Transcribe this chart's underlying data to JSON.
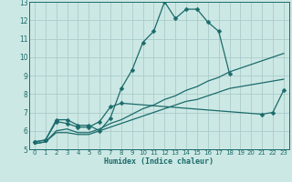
{
  "xlabel": "Humidex (Indice chaleur)",
  "xlim": [
    -0.5,
    23.5
  ],
  "ylim": [
    5,
    13
  ],
  "yticks": [
    5,
    6,
    7,
    8,
    9,
    10,
    11,
    12,
    13
  ],
  "xticks": [
    0,
    1,
    2,
    3,
    4,
    5,
    6,
    7,
    8,
    9,
    10,
    11,
    12,
    13,
    14,
    15,
    16,
    17,
    18,
    19,
    20,
    21,
    22,
    23
  ],
  "bg_color": "#cce8e4",
  "grid_color": "#aacccc",
  "line_color": "#1a6b6b",
  "lines": [
    {
      "x": [
        0,
        1,
        2,
        3,
        4,
        5,
        6,
        7,
        8,
        9,
        10,
        11,
        12,
        13,
        14,
        15,
        16,
        17,
        18
      ],
      "y": [
        5.4,
        5.5,
        6.6,
        6.6,
        6.3,
        6.3,
        6.0,
        6.7,
        8.3,
        9.3,
        10.8,
        11.4,
        13.0,
        12.1,
        12.6,
        12.6,
        11.9,
        11.4,
        9.1
      ],
      "marker": "D",
      "markersize": 2.5,
      "linewidth": 0.9
    },
    {
      "x": [
        0,
        1,
        2,
        3,
        4,
        5,
        6,
        7,
        8,
        21,
        22,
        23
      ],
      "y": [
        5.4,
        5.5,
        6.5,
        6.4,
        6.2,
        6.2,
        6.5,
        7.3,
        7.5,
        6.9,
        7.0,
        8.2
      ],
      "marker": "D",
      "markersize": 2.5,
      "linewidth": 0.9
    },
    {
      "x": [
        0,
        1,
        2,
        3,
        4,
        5,
        6,
        7,
        8,
        9,
        10,
        11,
        12,
        13,
        14,
        15,
        16,
        17,
        18,
        19,
        20,
        21,
        22,
        23
      ],
      "y": [
        5.3,
        5.4,
        6.0,
        6.1,
        5.9,
        5.9,
        6.1,
        6.4,
        6.6,
        6.9,
        7.2,
        7.4,
        7.7,
        7.9,
        8.2,
        8.4,
        8.7,
        8.9,
        9.2,
        9.4,
        9.6,
        9.8,
        10.0,
        10.2
      ],
      "marker": null,
      "markersize": 0,
      "linewidth": 0.9
    },
    {
      "x": [
        0,
        1,
        2,
        3,
        4,
        5,
        6,
        7,
        8,
        9,
        10,
        11,
        12,
        13,
        14,
        15,
        16,
        17,
        18,
        19,
        20,
        21,
        22,
        23
      ],
      "y": [
        5.3,
        5.4,
        5.9,
        5.9,
        5.8,
        5.8,
        6.0,
        6.2,
        6.4,
        6.6,
        6.8,
        7.0,
        7.2,
        7.4,
        7.6,
        7.7,
        7.9,
        8.1,
        8.3,
        8.4,
        8.5,
        8.6,
        8.7,
        8.8
      ],
      "marker": null,
      "markersize": 0,
      "linewidth": 0.9
    }
  ]
}
